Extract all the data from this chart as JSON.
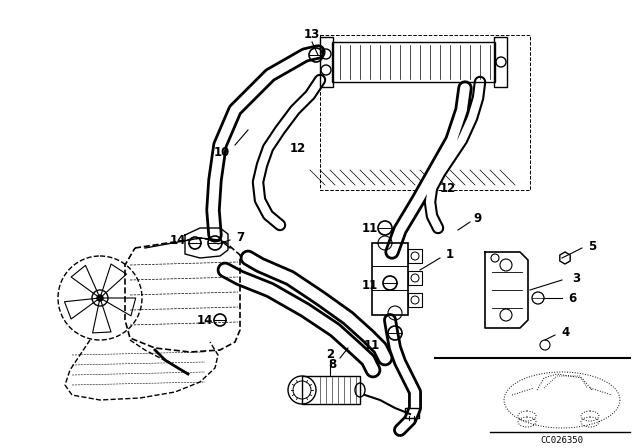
{
  "background_color": "#ffffff",
  "line_color": "#000000",
  "diagram_code": "CC026350",
  "figsize": [
    6.4,
    4.48
  ],
  "dpi": 100
}
